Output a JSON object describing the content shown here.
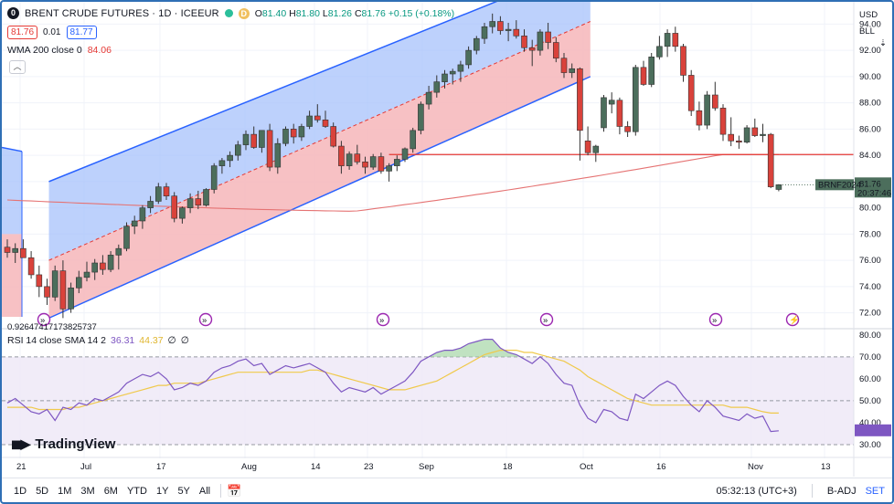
{
  "symbol": {
    "badge": "0",
    "title": "BRENT CRUDE FUTURES · 1D · ICEEUR",
    "market_dot_color": "#2bbf9b",
    "status_letter": "D",
    "ohlc": {
      "o_label": "O",
      "o": "81.40",
      "h_label": "H",
      "h": "81.80",
      "l_label": "L",
      "l": "81.26",
      "c_label": "C",
      "c": "81.76",
      "chg": "+0.15 (+0.18%)"
    }
  },
  "quote": {
    "bid": "81.76",
    "spread": "0.01",
    "ask": "81.77"
  },
  "wma": {
    "label": "WMA 200 close 0",
    "value": "84.06"
  },
  "rsi": {
    "label": "RSI 14 close SMA 14 2",
    "value": "36.31",
    "sma": "44.37",
    "extra1": "∅",
    "extra2": "∅"
  },
  "channel_readout": "0.92647417173825737",
  "axis": {
    "currency": "USD",
    "unit": "BLL",
    "price_ticks": [
      "94.00",
      "92.00",
      "90.00",
      "88.00",
      "86.00",
      "84.00",
      "82.00",
      "80.00",
      "78.00",
      "76.00",
      "74.00",
      "72.00"
    ],
    "rsi_ticks": [
      "80.00",
      "70.00",
      "60.00",
      "50.00",
      "40.00",
      "30.00"
    ],
    "date_ticks": [
      "21",
      "Jul",
      "17",
      "Aug",
      "14",
      "23",
      "Sep",
      "18",
      "Oct",
      "16",
      "Nov",
      "13"
    ]
  },
  "last_price": {
    "ticker": "BRNF2024",
    "price": "81.76",
    "countdown": "20:37:46"
  },
  "logo": "TradingView",
  "bottom": {
    "timeframes": [
      "1D",
      "5D",
      "1M",
      "3M",
      "6M",
      "YTD",
      "1Y",
      "5Y",
      "All"
    ],
    "time": "05:32:13 (UTC+3)",
    "adj": "B-ADJ",
    "set": "SET"
  },
  "colors": {
    "up": "#4c6e5c",
    "down": "#d9423b",
    "wma": "#e57373",
    "channel_upper": "#a7c1fb",
    "channel_lower": "#f6b6ba",
    "rsi_line": "#7e57c2",
    "rsi_sma": "#f0c94b",
    "hline": "#e53935"
  },
  "chart_data": {
    "type": "candlestick",
    "price_range": [
      71,
      95
    ],
    "rsi_range": [
      30,
      80
    ],
    "candles": [
      [
        77.0,
        77.6,
        76.2,
        76.6
      ],
      [
        76.6,
        77.3,
        75.8,
        76.9
      ],
      [
        76.9,
        77.6,
        76.4,
        76.2
      ],
      [
        76.2,
        76.7,
        74.6,
        74.9
      ],
      [
        74.9,
        75.6,
        73.2,
        74.0
      ],
      [
        74.0,
        74.6,
        72.6,
        73.2
      ],
      [
        73.2,
        75.6,
        72.9,
        75.2
      ],
      [
        75.2,
        76.0,
        71.6,
        72.3
      ],
      [
        72.3,
        74.3,
        72.0,
        73.9
      ],
      [
        73.9,
        75.2,
        73.5,
        74.7
      ],
      [
        74.7,
        75.9,
        74.4,
        75.1
      ],
      [
        75.1,
        76.1,
        74.5,
        75.8
      ],
      [
        75.8,
        76.4,
        74.9,
        75.3
      ],
      [
        75.3,
        76.7,
        75.1,
        76.4
      ],
      [
        76.4,
        77.2,
        75.3,
        76.9
      ],
      [
        76.9,
        78.9,
        76.7,
        78.6
      ],
      [
        78.6,
        79.4,
        78.0,
        79.0
      ],
      [
        79.0,
        80.2,
        78.4,
        80.0
      ],
      [
        80.0,
        80.9,
        79.6,
        80.5
      ],
      [
        80.5,
        81.9,
        80.3,
        81.6
      ],
      [
        81.6,
        81.9,
        80.6,
        80.9
      ],
      [
        80.9,
        81.2,
        78.9,
        79.2
      ],
      [
        79.2,
        80.1,
        78.8,
        80.0
      ],
      [
        80.0,
        81.1,
        79.6,
        80.7
      ],
      [
        80.7,
        81.3,
        79.9,
        80.2
      ],
      [
        80.2,
        81.5,
        80.1,
        81.4
      ],
      [
        81.4,
        83.4,
        81.1,
        83.2
      ],
      [
        83.2,
        83.8,
        82.6,
        83.6
      ],
      [
        83.6,
        84.3,
        83.1,
        84.0
      ],
      [
        84.0,
        85.1,
        83.6,
        84.8
      ],
      [
        84.8,
        85.9,
        84.4,
        85.6
      ],
      [
        85.6,
        86.2,
        84.5,
        84.6
      ],
      [
        84.6,
        85.8,
        84.2,
        85.9
      ],
      [
        85.9,
        86.4,
        82.8,
        83.1
      ],
      [
        83.1,
        85.3,
        82.6,
        84.9
      ],
      [
        84.9,
        86.2,
        84.7,
        86.0
      ],
      [
        86.0,
        86.4,
        84.9,
        85.4
      ],
      [
        85.4,
        86.4,
        85.1,
        86.2
      ],
      [
        86.2,
        87.4,
        86.0,
        87.0
      ],
      [
        87.0,
        87.9,
        86.5,
        86.7
      ],
      [
        86.7,
        87.4,
        86.1,
        86.2
      ],
      [
        86.2,
        86.5,
        84.6,
        84.7
      ],
      [
        84.7,
        85.1,
        82.6,
        83.2
      ],
      [
        83.2,
        84.3,
        82.9,
        84.1
      ],
      [
        84.1,
        84.8,
        83.3,
        83.5
      ],
      [
        83.5,
        83.9,
        82.6,
        83.1
      ],
      [
        83.1,
        84.1,
        82.9,
        83.9
      ],
      [
        83.9,
        84.2,
        82.6,
        82.8
      ],
      [
        82.8,
        83.4,
        82.0,
        83.2
      ],
      [
        83.2,
        84.0,
        82.8,
        83.7
      ],
      [
        83.7,
        84.6,
        83.5,
        84.5
      ],
      [
        84.5,
        86.1,
        84.2,
        85.9
      ],
      [
        85.9,
        88.1,
        85.6,
        87.9
      ],
      [
        87.9,
        89.3,
        87.5,
        88.8
      ],
      [
        88.8,
        90.1,
        88.4,
        89.6
      ],
      [
        89.6,
        90.5,
        89.1,
        90.2
      ],
      [
        90.2,
        90.6,
        89.4,
        90.4
      ],
      [
        90.4,
        91.2,
        89.6,
        90.9
      ],
      [
        90.9,
        92.3,
        90.6,
        92.0
      ],
      [
        92.0,
        93.1,
        91.7,
        92.9
      ],
      [
        92.9,
        94.1,
        92.5,
        93.8
      ],
      [
        93.8,
        94.8,
        93.3,
        94.2
      ],
      [
        94.2,
        94.6,
        93.2,
        93.5
      ],
      [
        93.5,
        94.1,
        92.7,
        93.6
      ],
      [
        93.6,
        94.3,
        92.9,
        93.1
      ],
      [
        93.1,
        93.6,
        91.9,
        92.2
      ],
      [
        92.2,
        92.8,
        90.8,
        92.0
      ],
      [
        92.0,
        93.6,
        91.6,
        93.4
      ],
      [
        93.4,
        94.1,
        92.1,
        92.6
      ],
      [
        92.6,
        93.0,
        91.1,
        91.4
      ],
      [
        91.4,
        91.8,
        89.9,
        90.3
      ],
      [
        90.3,
        91.0,
        89.9,
        90.6
      ],
      [
        90.6,
        90.7,
        83.6,
        85.9
      ],
      [
        85.1,
        86.2,
        84.0,
        84.2
      ],
      [
        84.2,
        84.8,
        83.5,
        84.7
      ],
      [
        86.1,
        88.6,
        85.8,
        88.4
      ],
      [
        87.9,
        88.8,
        87.2,
        88.2
      ],
      [
        88.2,
        88.4,
        85.6,
        86.2
      ],
      [
        86.2,
        86.6,
        85.4,
        85.8
      ],
      [
        85.8,
        90.9,
        85.5,
        90.7
      ],
      [
        90.7,
        91.2,
        89.3,
        89.4
      ],
      [
        89.4,
        91.8,
        89.2,
        91.5
      ],
      [
        91.5,
        93.1,
        91.3,
        92.3
      ],
      [
        92.3,
        93.6,
        91.5,
        93.3
      ],
      [
        93.3,
        93.8,
        91.9,
        92.3
      ],
      [
        92.3,
        92.5,
        89.6,
        90.1
      ],
      [
        90.1,
        90.5,
        87.0,
        87.4
      ],
      [
        87.4,
        88.1,
        85.9,
        86.3
      ],
      [
        86.3,
        88.9,
        86.0,
        88.6
      ],
      [
        88.6,
        89.6,
        87.4,
        87.6
      ],
      [
        87.6,
        87.9,
        85.1,
        85.6
      ],
      [
        85.6,
        86.9,
        84.7,
        85.1
      ],
      [
        85.1,
        85.5,
        84.5,
        85.0
      ],
      [
        85.0,
        86.3,
        84.9,
        86.1
      ],
      [
        86.1,
        86.8,
        85.4,
        85.5
      ],
      [
        85.5,
        86.4,
        85.0,
        85.6
      ],
      [
        85.6,
        85.7,
        81.5,
        81.6
      ],
      [
        81.4,
        81.8,
        81.26,
        81.76
      ]
    ],
    "rsi_values": [
      49,
      51,
      48,
      45,
      44,
      46,
      41,
      47,
      46,
      49,
      48,
      51,
      50,
      52,
      54,
      58,
      60,
      62,
      61,
      63,
      60,
      55,
      56,
      58,
      57,
      59,
      63,
      65,
      66,
      68,
      69,
      66,
      67,
      62,
      64,
      66,
      65,
      66,
      67,
      65,
      63,
      58,
      54,
      56,
      55,
      54,
      56,
      53,
      55,
      57,
      59,
      63,
      68,
      70,
      72,
      73,
      73,
      74,
      76,
      77,
      78,
      78,
      74,
      72,
      71,
      69,
      67,
      70,
      67,
      62,
      58,
      57,
      48,
      42,
      40,
      46,
      45,
      42,
      41,
      53,
      51,
      54,
      57,
      59,
      57,
      52,
      48,
      45,
      50,
      47,
      43,
      42,
      41,
      44,
      42,
      43,
      36,
      36.31
    ],
    "rsi_sma_values": [
      47,
      47,
      47,
      47,
      46,
      46,
      46,
      46,
      47,
      47,
      48,
      49,
      50,
      51,
      52,
      53,
      54,
      55,
      56,
      57,
      57,
      58,
      58,
      58,
      58,
      59,
      60,
      61,
      62,
      63,
      63,
      63,
      63,
      63,
      63,
      63,
      63,
      63,
      64,
      64,
      63,
      62,
      61,
      60,
      59,
      58,
      57,
      56,
      55,
      55,
      55,
      56,
      57,
      58,
      59,
      61,
      63,
      65,
      67,
      69,
      71,
      72,
      73,
      73,
      73,
      72,
      72,
      71,
      70,
      69,
      68,
      66,
      64,
      61,
      59,
      57,
      55,
      53,
      51,
      50,
      49,
      48,
      48,
      48,
      48,
      48,
      48,
      48,
      48,
      48,
      48,
      47,
      47,
      47,
      46,
      45,
      44.37,
      44.37
    ],
    "wma_values": "rising from 80.2 to 84.06",
    "horizontal_line": 84.06
  }
}
